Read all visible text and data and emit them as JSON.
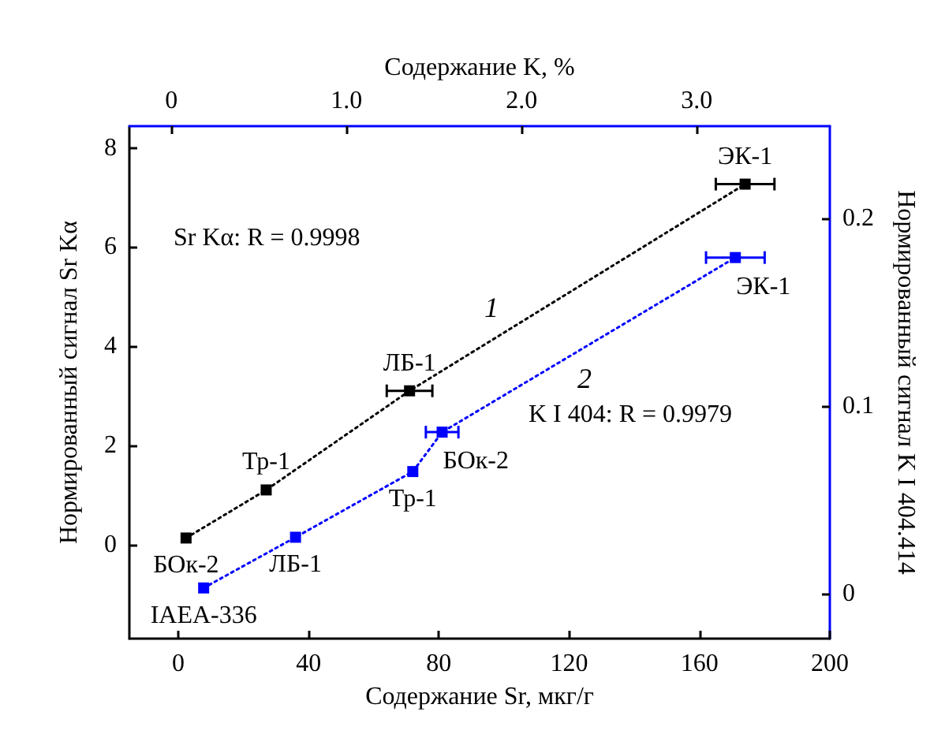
{
  "chart_data": {
    "type": "line",
    "xlabel": "Содержание Sr, мкг/г",
    "x2label": "Содержание K, %",
    "ylabel": "Нормированный сигнал Sr Kα",
    "y2label": "Нормированный сигнал K I 404.414",
    "xlim": [
      -15,
      200
    ],
    "xticks": [
      0,
      40,
      80,
      120,
      160,
      200
    ],
    "x2lim": [
      -0.24,
      3.76
    ],
    "x2ticks": [
      0,
      {
        "value": 1,
        "label": "1.0"
      },
      {
        "value": 2,
        "label": "2.0"
      },
      {
        "value": 3,
        "label": "3.0"
      }
    ],
    "ylim": [
      -1.9,
      8.44
    ],
    "yticks": [
      0,
      2,
      4,
      6,
      8
    ],
    "y2lim": [
      -0.024,
      0.249
    ],
    "y2ticks": [
      0,
      0.1,
      0.2
    ],
    "marker": "square",
    "line_style": "dotted",
    "grid": false,
    "series": [
      {
        "color": "#000000",
        "x": [
          2.4,
          27,
          71,
          174
        ],
        "values": [
          0.13,
          1.1,
          3.1,
          7.27
        ],
        "xerrors": [
          null,
          null,
          7,
          9
        ],
        "value_labels": [
          "БОк-2",
          "Тр-1",
          "ЛБ-1",
          "ЭК-1"
        ]
      },
      {
        "color": "#0000ff",
        "axis": "y2",
        "x": [
          7.8,
          36,
          72,
          81,
          171
        ],
        "values": [
          0.003,
          0.03,
          0.065,
          0.086,
          0.179
        ],
        "xerrors": [
          null,
          null,
          null,
          5,
          9
        ],
        "value_labels": [
          "IAEA-336",
          "ЛБ-1",
          "Тр-1",
          "БОк-2",
          "ЭК-1"
        ]
      }
    ],
    "annotations": [
      "Sr Kα: R = 0.9998",
      "K I 404: R = 0.9979",
      "1",
      "2"
    ]
  }
}
